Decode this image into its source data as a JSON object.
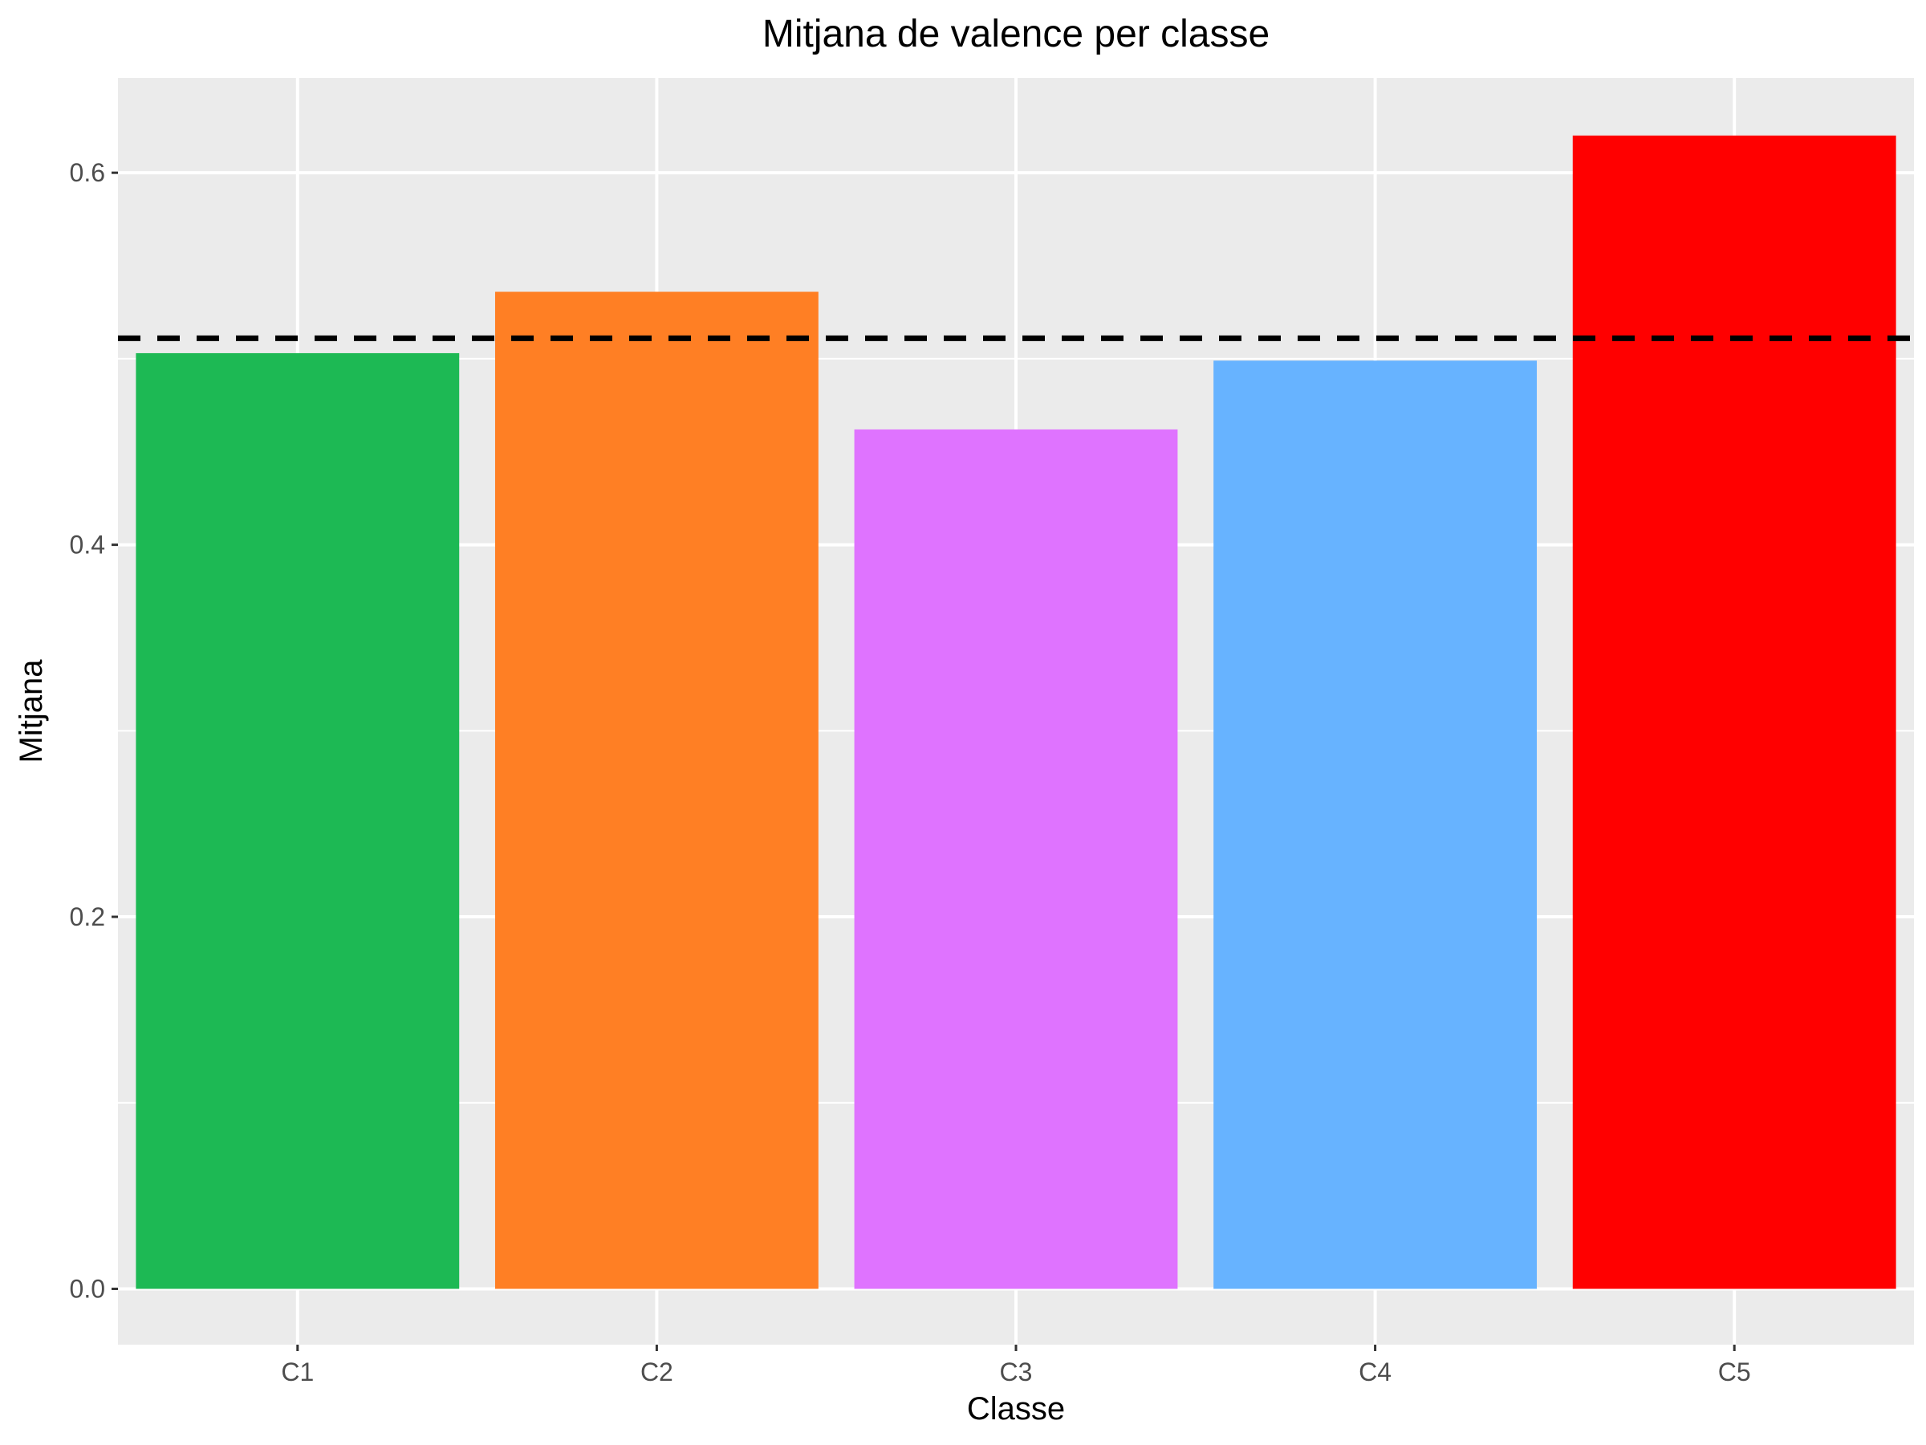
{
  "chart_data": {
    "type": "bar",
    "title": "Mitjana de valence per classe",
    "xlabel": "Classe",
    "ylabel": "Mitjana",
    "categories": [
      "C1",
      "C2",
      "C3",
      "C4",
      "C5"
    ],
    "values": [
      0.503,
      0.536,
      0.462,
      0.499,
      0.62
    ],
    "colors": [
      "#1DB954",
      "#FF7F24",
      "#DF73FF",
      "#67B3FF",
      "#FF0000"
    ],
    "reference_line": {
      "value": 0.511,
      "style": "dashed",
      "color": "#000000"
    },
    "ylim": [
      -0.03,
      0.651
    ],
    "yticks": [
      0.0,
      0.2,
      0.4,
      0.6
    ],
    "ytick_labels": [
      "0.0",
      "0.2",
      "0.4",
      "0.6"
    ],
    "grid": true,
    "legend": "none",
    "panel_background": "#EBEBEB",
    "grid_color": "#FFFFFF"
  }
}
